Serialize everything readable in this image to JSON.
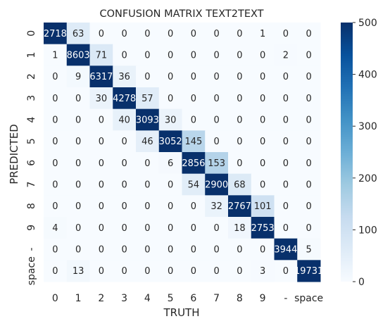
{
  "chart_data": {
    "type": "heatmap",
    "title": "CONFUSION MATRIX TEXT2TEXT",
    "xlabel": "TRUTH",
    "ylabel": "PREDICTED",
    "x_categories": [
      "0",
      "1",
      "2",
      "3",
      "4",
      "5",
      "6",
      "7",
      "8",
      "9",
      "-",
      "space"
    ],
    "y_categories": [
      "0",
      "1",
      "2",
      "3",
      "4",
      "5",
      "6",
      "7",
      "8",
      "9",
      "-",
      "space"
    ],
    "values": [
      [
        2718,
        63,
        0,
        0,
        0,
        0,
        0,
        0,
        0,
        1,
        0,
        0
      ],
      [
        1,
        8603,
        71,
        0,
        0,
        0,
        0,
        0,
        0,
        0,
        2,
        0
      ],
      [
        0,
        9,
        6317,
        36,
        0,
        0,
        0,
        0,
        0,
        0,
        0,
        0
      ],
      [
        0,
        0,
        30,
        4278,
        57,
        0,
        0,
        0,
        0,
        0,
        0,
        0
      ],
      [
        0,
        0,
        0,
        40,
        3093,
        30,
        0,
        0,
        0,
        0,
        0,
        0
      ],
      [
        0,
        0,
        0,
        0,
        46,
        3052,
        145,
        0,
        0,
        0,
        0,
        0
      ],
      [
        0,
        0,
        0,
        0,
        0,
        6,
        2856,
        153,
        0,
        0,
        0,
        0
      ],
      [
        0,
        0,
        0,
        0,
        0,
        0,
        54,
        2900,
        68,
        0,
        0,
        0
      ],
      [
        0,
        0,
        0,
        0,
        0,
        0,
        0,
        32,
        2767,
        101,
        0,
        0
      ],
      [
        4,
        0,
        0,
        0,
        0,
        0,
        0,
        0,
        18,
        2753,
        0,
        0
      ],
      [
        0,
        0,
        0,
        0,
        0,
        0,
        0,
        0,
        0,
        0,
        3944,
        5
      ],
      [
        0,
        13,
        0,
        0,
        0,
        0,
        0,
        0,
        0,
        3,
        0,
        19731
      ]
    ],
    "colorbar": {
      "min": 0,
      "max": 500,
      "ticks": [
        0,
        100,
        200,
        300,
        400,
        500
      ]
    },
    "colormap": {
      "low": "#f7fbff",
      "high": "#08306b"
    },
    "grid": false
  }
}
